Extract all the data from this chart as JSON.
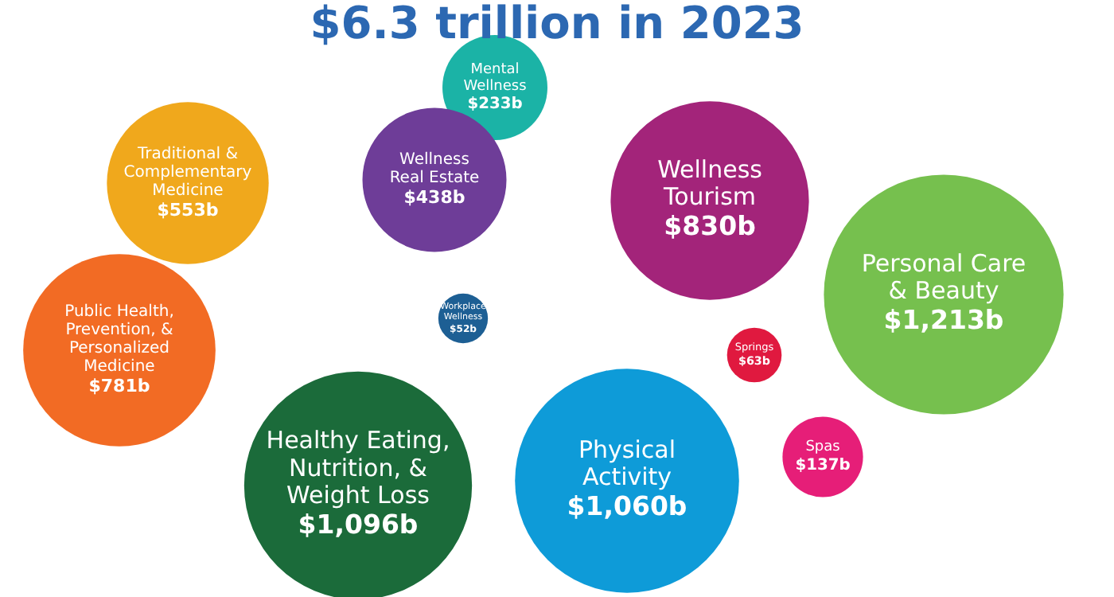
{
  "chart_data": {
    "type": "other",
    "title": "$6.3 trillion in 2023",
    "categories": [
      "Traditional &\nComplementary\nMedicine",
      "Mental\nWellness",
      "Wellness\nReal Estate",
      "Wellness\nTourism",
      "Personal Care\n& Beauty",
      "Public Health,\nPrevention, &\nPersonalized\nMedicine",
      "Workplace\nWellness",
      "Healthy Eating,\nNutrition, &\nWeight Loss",
      "Physical\nActivity",
      "Springs",
      "Spas"
    ],
    "values": [
      553,
      233,
      438,
      830,
      1213,
      781,
      52,
      1096,
      1060,
      63,
      137
    ],
    "value_labels": [
      "$553b",
      "$233b",
      "$438b",
      "$830b",
      "$1,213b",
      "$781b",
      "$52b",
      "$1,096b",
      "$1,060b",
      "$63b",
      "$137b"
    ],
    "colors": [
      "#f0a81c",
      "#1bb3a6",
      "#6e3d98",
      "#a3247a",
      "#76c04e",
      "#f26b24",
      "#1d5f94",
      "#1b6b3a",
      "#0e9bd8",
      "#e0193f",
      "#e61e78"
    ]
  }
}
